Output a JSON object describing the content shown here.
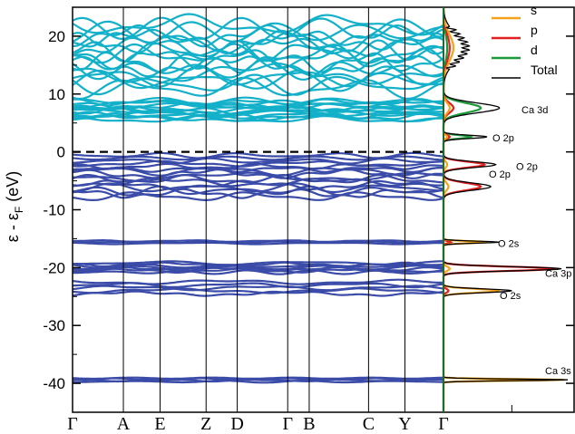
{
  "chart_data": {
    "type": "line",
    "title": "",
    "ylabel": {
      "main": "ε - ε",
      "sub": "F",
      "unit": " (eV)"
    },
    "ylim": [
      -45,
      25
    ],
    "yticks": [
      20,
      10,
      0,
      -10,
      -20,
      -30,
      -40
    ],
    "ytick_labels": [
      "20",
      "10",
      "0",
      "-10",
      "-20",
      "-30",
      "-40"
    ],
    "fermi_level": 0,
    "kpoint_labels": [
      "Γ",
      "A",
      "E",
      "Z",
      "D",
      "Γ",
      "B",
      "C",
      "Y",
      "Γ"
    ],
    "kpoint_positions": [
      0,
      0.137,
      0.236,
      0.36,
      0.444,
      0.58,
      0.638,
      0.798,
      0.896,
      1.0
    ],
    "band_groups": [
      {
        "name": "Ca 3s bands",
        "color": "#3a4ba8",
        "center": -39.4,
        "spread": 0.3,
        "count": 4
      },
      {
        "name": "O 2s bands",
        "color": "#3a4ba8",
        "center": -23.5,
        "spread": 1.0,
        "count": 5
      },
      {
        "name": "Ca 3p bands",
        "color": "#3a4ba8",
        "center": -20.0,
        "spread": 0.8,
        "count": 7
      },
      {
        "name": "O 2s upper bands",
        "color": "#3a4ba8",
        "center": -15.6,
        "spread": 0.2,
        "count": 3
      },
      {
        "name": "O 2p lower bands",
        "color": "#3a4ba8",
        "center": -5.5,
        "spread": 2.2,
        "count": 10
      },
      {
        "name": "O 2p upper bands",
        "color": "#3a4ba8",
        "center": -1.8,
        "spread": 1.2,
        "count": 6
      },
      {
        "name": "Ca 3d bands",
        "color": "#13b0c9",
        "center": 7.2,
        "spread": 1.6,
        "count": 14
      },
      {
        "name": "conduction upper bands",
        "color": "#13b0c9",
        "center": 16.5,
        "spread": 5.5,
        "count": 18
      }
    ],
    "dos": {
      "legend": [
        {
          "label": "s",
          "color": "#f5a31a"
        },
        {
          "label": "p",
          "color": "#e32020"
        },
        {
          "label": "d",
          "color": "#1a9a3a"
        },
        {
          "label": "Total",
          "color": "#000000"
        }
      ],
      "peaks": [
        {
          "energy": -39.4,
          "width": 0.2,
          "total": 1.0,
          "s": 0.97,
          "p": 0.0,
          "d": 0.0,
          "label": "Ca 3s"
        },
        {
          "energy": -24.0,
          "width": 0.45,
          "total": 0.55,
          "s": 0.45,
          "p": 0.04,
          "d": 0.0,
          "label": "O 2s"
        },
        {
          "energy": -20.2,
          "width": 0.5,
          "total": 0.95,
          "s": 0.05,
          "p": 0.9,
          "d": 0.0,
          "label": "Ca 3p"
        },
        {
          "energy": -15.6,
          "width": 0.25,
          "total": 0.45,
          "s": 0.35,
          "p": 0.06,
          "d": 0.0,
          "label": "O 2s"
        },
        {
          "energy": -6.0,
          "width": 0.9,
          "total": 0.38,
          "s": 0.04,
          "p": 0.3,
          "d": 0.0,
          "label": "O 2p"
        },
        {
          "energy": -2.2,
          "width": 0.7,
          "total": 0.42,
          "s": 0.03,
          "p": 0.33,
          "d": 0.0,
          "label": "O 2p"
        },
        {
          "energy": 2.6,
          "width": 0.4,
          "total": 0.35,
          "s": 0.03,
          "p": 0.05,
          "d": 0.22,
          "label": "O 2p"
        },
        {
          "energy": 7.6,
          "width": 1.2,
          "total": 0.45,
          "s": 0.05,
          "p": 0.08,
          "d": 0.3,
          "label": "Ca 3d"
        },
        {
          "energy": 18.0,
          "width": 3.2,
          "total": 0.18,
          "s": 0.08,
          "p": 0.05,
          "d": 0.03,
          "label": ""
        }
      ]
    }
  }
}
